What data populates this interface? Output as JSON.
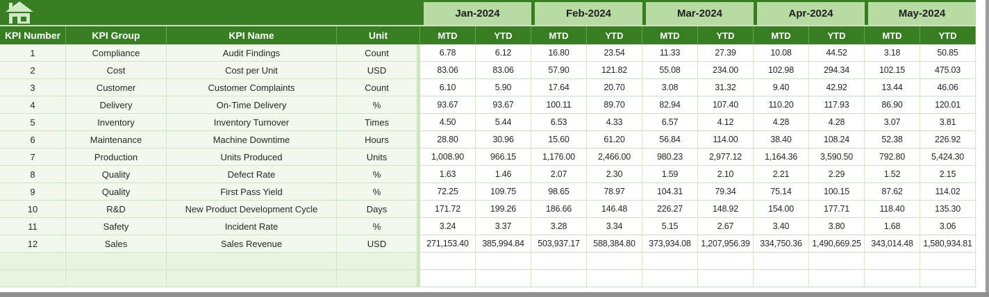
{
  "header": {
    "home_icon": "home-icon",
    "columns": [
      "KPI Number",
      "KPI Group",
      "KPI Name",
      "Unit"
    ],
    "months": [
      "Jan-2024",
      "Feb-2024",
      "Mar-2024",
      "Apr-2024",
      "May-2024"
    ],
    "sub_columns": [
      "MTD",
      "YTD"
    ]
  },
  "rows": [
    {
      "number": "1",
      "group": "Compliance",
      "name": "Audit Findings",
      "unit": "Count",
      "values": [
        "6.78",
        "6.12",
        "16.80",
        "23.54",
        "11.33",
        "27.39",
        "10.08",
        "44.52",
        "3.18",
        "50.85"
      ]
    },
    {
      "number": "2",
      "group": "Cost",
      "name": "Cost per Unit",
      "unit": "USD",
      "values": [
        "83.06",
        "83.06",
        "57.90",
        "121.82",
        "55.08",
        "234.00",
        "102.98",
        "294.34",
        "102.15",
        "475.03"
      ]
    },
    {
      "number": "3",
      "group": "Customer",
      "name": "Customer Complaints",
      "unit": "Count",
      "values": [
        "6.10",
        "5.90",
        "17.64",
        "20.70",
        "3.08",
        "31.32",
        "9.40",
        "42.92",
        "13.44",
        "46.06"
      ]
    },
    {
      "number": "4",
      "group": "Delivery",
      "name": "On-Time Delivery",
      "unit": "%",
      "values": [
        "93.67",
        "93.67",
        "100.11",
        "89.70",
        "82.94",
        "107.40",
        "110.20",
        "117.93",
        "86.90",
        "120.01"
      ]
    },
    {
      "number": "5",
      "group": "Inventory",
      "name": "Inventory Turnover",
      "unit": "Times",
      "values": [
        "4.50",
        "5.44",
        "6.53",
        "4.33",
        "6.57",
        "4.12",
        "4.28",
        "4.28",
        "3.07",
        "3.81"
      ]
    },
    {
      "number": "6",
      "group": "Maintenance",
      "name": "Machine Downtime",
      "unit": "Hours",
      "values": [
        "28.80",
        "30.96",
        "15.60",
        "61.20",
        "56.84",
        "114.00",
        "38.40",
        "108.24",
        "52.38",
        "226.92"
      ]
    },
    {
      "number": "7",
      "group": "Production",
      "name": "Units Produced",
      "unit": "Units",
      "values": [
        "1,008.90",
        "966.15",
        "1,176.00",
        "2,466.00",
        "980.23",
        "2,977.12",
        "1,164.36",
        "3,590.50",
        "792.80",
        "5,424.30"
      ]
    },
    {
      "number": "8",
      "group": "Quality",
      "name": "Defect Rate",
      "unit": "%",
      "values": [
        "1.63",
        "1.46",
        "2.07",
        "2.30",
        "1.59",
        "2.10",
        "2.21",
        "2.29",
        "1.52",
        "2.15"
      ]
    },
    {
      "number": "9",
      "group": "Quality",
      "name": "First Pass Yield",
      "unit": "%",
      "values": [
        "72.25",
        "109.75",
        "98.65",
        "78.97",
        "104.31",
        "79.34",
        "75.14",
        "100.15",
        "87.62",
        "114.02"
      ]
    },
    {
      "number": "10",
      "group": "R&D",
      "name": "New Product Development Cycle",
      "unit": "Days",
      "values": [
        "171.72",
        "199.26",
        "186.66",
        "146.48",
        "226.27",
        "148.92",
        "154.00",
        "177.71",
        "118.40",
        "135.30"
      ]
    },
    {
      "number": "11",
      "group": "Safety",
      "name": "Incident Rate",
      "unit": "%",
      "values": [
        "3.24",
        "3.37",
        "3.28",
        "3.34",
        "5.15",
        "2.67",
        "3.40",
        "3.80",
        "1.68",
        "3.06"
      ]
    },
    {
      "number": "12",
      "group": "Sales",
      "name": "Sales Revenue",
      "unit": "USD",
      "values": [
        "271,153.40",
        "385,994.84",
        "503,937.17",
        "588,384.80",
        "373,934.08",
        "1,207,956.39",
        "334,750.36",
        "1,490,669.25",
        "343,014.48",
        "1,580,934.81"
      ]
    }
  ],
  "empty_row_count": 2,
  "colors": {
    "dark_green": "#377D22",
    "month_green": "#B7DBA3",
    "icon_pale_green": "#CFEAC4",
    "row_left_bg": "#F2F8ED",
    "empty_row_bg": "#E9F3E0",
    "grid_line": "#CDE3BF",
    "window_border_gray": "#8f8f8f"
  }
}
